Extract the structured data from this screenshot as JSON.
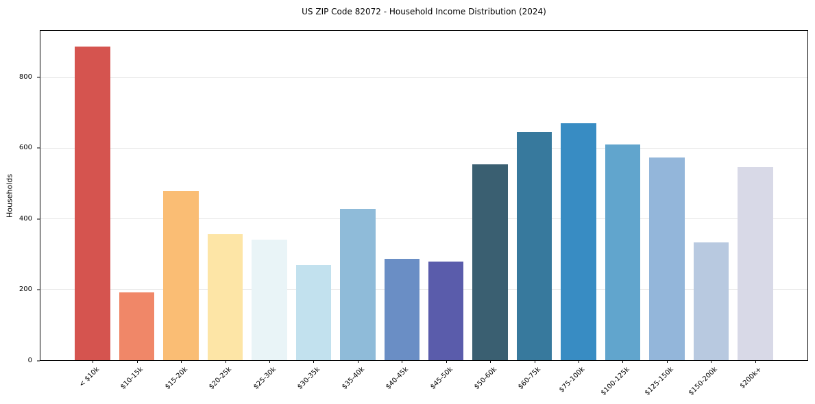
{
  "figure": {
    "title": "US ZIP Code 82072 - Household Income Distribution (2024)"
  },
  "chart_data": {
    "type": "bar",
    "title": "US ZIP Code 82072 - Household Income Distribution (2024)",
    "xlabel": "",
    "ylabel": "Households",
    "categories": [
      "< $10k",
      "$10-15k",
      "$15-20k",
      "$20-25k",
      "$25-30k",
      "$30-35k",
      "$35-40k",
      "$40-45k",
      "$45-50k",
      "$50-60k",
      "$60-75k",
      "$75-100k",
      "$100-125k",
      "$125-150k",
      "$150-200k",
      "$200k+"
    ],
    "values": [
      888,
      193,
      479,
      357,
      342,
      269,
      428,
      288,
      280,
      555,
      646,
      672,
      611,
      574,
      334,
      547
    ],
    "bar_colors": [
      "#d5544f",
      "#f08768",
      "#fabd74",
      "#fde5a6",
      "#e9f4f7",
      "#c2e1ee",
      "#8fbbd9",
      "#6a8ec5",
      "#5a5cab",
      "#3a5f71",
      "#37799d",
      "#388cc3",
      "#61a5cd",
      "#93b6da",
      "#b8c9e0",
      "#d8d9e7"
    ],
    "ylim": [
      0,
      933
    ],
    "yticks": [
      0,
      200,
      400,
      600,
      800
    ],
    "grid": "horizontal",
    "legend": "none",
    "x_tick_rotation": 45
  },
  "colors": {
    "background": "#ffffff",
    "spine": "#000000",
    "grid": "#e6e6e6",
    "text": "#000000"
  }
}
